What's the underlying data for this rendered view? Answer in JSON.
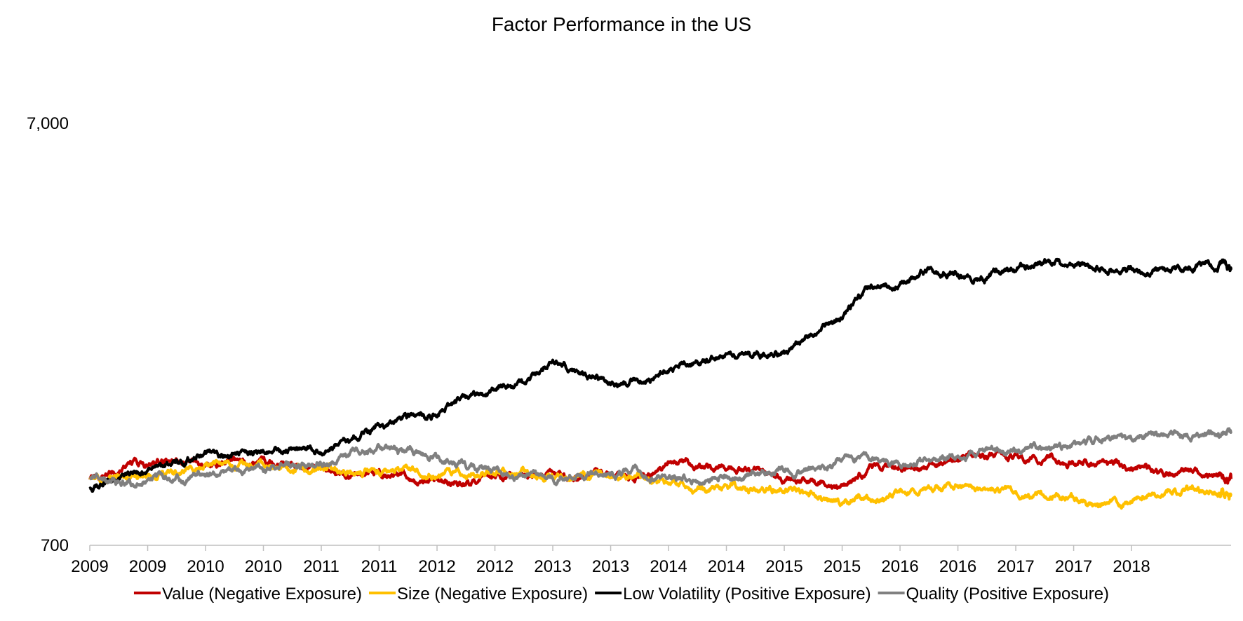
{
  "chart_data": {
    "type": "line",
    "title": "Factor Performance in the US",
    "y_scale": "log",
    "ylim": [
      700,
      7000
    ],
    "y_ticks": [
      "700",
      "7,000"
    ],
    "y_tick_values": [
      700,
      7000
    ],
    "xlim": [
      2009.0,
      2018.86
    ],
    "x_tick_values": [
      2009.0,
      2009.5,
      2010.0,
      2010.5,
      2011.0,
      2011.5,
      2012.0,
      2012.5,
      2013.0,
      2013.5,
      2014.0,
      2014.5,
      2015.0,
      2015.5,
      2016.0,
      2016.5,
      2017.0,
      2017.5,
      2018.0
    ],
    "x_tick_labels": [
      "2009",
      "2009",
      "2010",
      "2010",
      "2011",
      "2011",
      "2012",
      "2012",
      "2013",
      "2013",
      "2014",
      "2014",
      "2015",
      "2015",
      "2016",
      "2016",
      "2017",
      "2017",
      "2018"
    ],
    "legend_position": "bottom",
    "grid": false,
    "x": [
      2009.0,
      2009.25,
      2009.5,
      2009.75,
      2010.0,
      2010.25,
      2010.5,
      2010.75,
      2011.0,
      2011.25,
      2011.5,
      2011.75,
      2012.0,
      2012.25,
      2012.5,
      2012.75,
      2013.0,
      2013.25,
      2013.5,
      2013.75,
      2014.0,
      2014.25,
      2014.5,
      2014.75,
      2015.0,
      2015.25,
      2015.5,
      2015.75,
      2016.0,
      2016.25,
      2016.5,
      2016.75,
      2017.0,
      2017.25,
      2017.5,
      2017.75,
      2018.0,
      2018.25,
      2018.5,
      2018.75,
      2018.86
    ],
    "series": [
      {
        "name": "Value (Negative Exposure)",
        "color": "#C00000",
        "values": [
          1000,
          1070,
          1095,
          1100,
          1090,
          1110,
          1085,
          1090,
          1060,
          1020,
          1020,
          1010,
          985,
          975,
          1015,
          1030,
          1035,
          1035,
          1025,
          1020,
          1100,
          1085,
          1070,
          1060,
          1010,
          995,
          960,
          1060,
          1080,
          1055,
          1140,
          1130,
          1115,
          1125,
          1105,
          1125,
          1065,
          1045,
          1040,
          1020,
          1005
        ]
      },
      {
        "name": "Size (Negative Exposure)",
        "color": "#FFC000",
        "values": [
          1000,
          1010,
          1020,
          1040,
          1090,
          1080,
          1080,
          1070,
          1060,
          1040,
          1040,
          1040,
          1030,
          1020,
          1025,
          1035,
          1010,
          1020,
          1020,
          1010,
          975,
          960,
          960,
          960,
          960,
          920,
          880,
          900,
          920,
          950,
          965,
          945,
          925,
          920,
          895,
          885,
          900,
          925,
          950,
          930,
          925
        ]
      },
      {
        "name": "Low Volatility (Positive Exposure)",
        "color": "#000000",
        "values": [
          950,
          1000,
          1040,
          1110,
          1130,
          1150,
          1180,
          1190,
          1180,
          1260,
          1350,
          1400,
          1430,
          1560,
          1620,
          1700,
          1900,
          1800,
          1700,
          1710,
          1850,
          1900,
          1970,
          2000,
          2000,
          2200,
          2450,
          2900,
          2950,
          3150,
          3050,
          3050,
          3150,
          3250,
          3250,
          3150,
          3150,
          3150,
          3150,
          3250,
          3150
        ]
      },
      {
        "name": "Quality (Positive Exposure)",
        "color": "#808080",
        "values": [
          1000,
          985,
          985,
          1010,
          1025,
          1035,
          1060,
          1080,
          1100,
          1145,
          1200,
          1150,
          1120,
          1080,
          1050,
          1030,
          1000,
          1020,
          1030,
          1040,
          1010,
          1000,
          1030,
          1050,
          1060,
          1070,
          1100,
          1110,
          1100,
          1120,
          1130,
          1170,
          1180,
          1200,
          1220,
          1250,
          1260,
          1270,
          1280,
          1290,
          1300
        ]
      }
    ]
  }
}
